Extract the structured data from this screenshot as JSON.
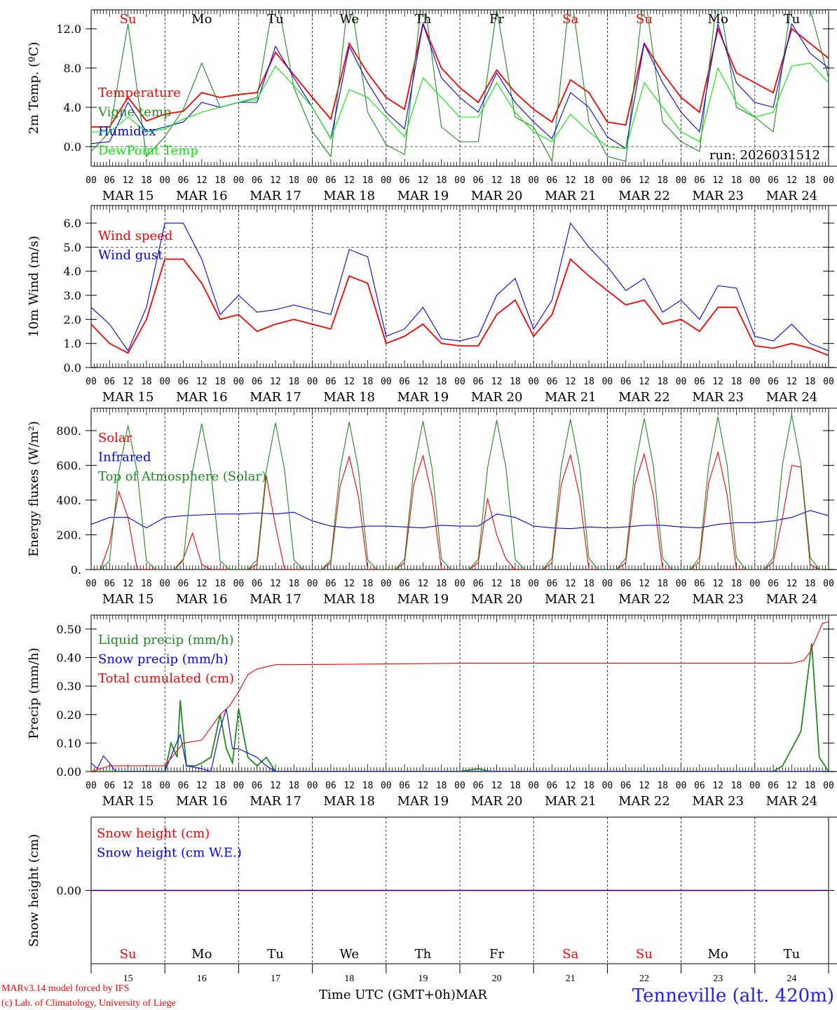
{
  "title": "Tenneville (alt. 420m)",
  "credits": [
    "MARv3.14 model forced by IFS",
    "(c) Lab. of Climatology, University of Liege"
  ],
  "xaxis_label": "Time UTC (GMT+0h)MAR",
  "run_label": "run: 2026031512",
  "hour_labels": [
    "00",
    "06",
    "12",
    "18"
  ],
  "last_hour_label": "00",
  "days": [
    {
      "date": "MAR 15",
      "num": "15",
      "weekday": "Su",
      "weekend": true
    },
    {
      "date": "MAR 16",
      "num": "16",
      "weekday": "Mo",
      "weekend": false
    },
    {
      "date": "MAR 17",
      "num": "17",
      "weekday": "Tu",
      "weekend": false
    },
    {
      "date": "MAR 18",
      "num": "18",
      "weekday": "We",
      "weekend": false
    },
    {
      "date": "MAR 19",
      "num": "19",
      "weekday": "Th",
      "weekend": false
    },
    {
      "date": "MAR 20",
      "num": "20",
      "weekday": "Fr",
      "weekend": false
    },
    {
      "date": "MAR 21",
      "num": "21",
      "weekday": "Sa",
      "weekend": true
    },
    {
      "date": "MAR 22",
      "num": "22",
      "weekday": "Su",
      "weekend": true
    },
    {
      "date": "MAR 23",
      "num": "23",
      "weekday": "Mo",
      "weekend": false
    },
    {
      "date": "MAR 24",
      "num": "24",
      "weekday": "Tu",
      "weekend": false
    }
  ],
  "colors": {
    "weekend": "#ff0000",
    "weekday": "#000000",
    "title": "#2020ff",
    "credits": "#ff0000"
  },
  "chart_data": [
    {
      "type": "line",
      "ylabel": "2m Temp. (ºC)",
      "ylim": [
        -2,
        13.93
      ],
      "yticks": [
        0,
        4,
        8,
        12
      ],
      "yticklabels": [
        "0.0",
        "4.0",
        "8.0",
        "12.0"
      ],
      "ref_lines": [
        0
      ],
      "x_unit": "hours since MAR 15 00 UTC",
      "show_weekdays": true,
      "series": [
        {
          "name": "Temperature",
          "color": "#ff0000",
          "step_h": 6,
          "values": [
            2.0,
            2.0,
            5.0,
            2.6,
            3.3,
            3.6,
            5.5,
            5.0,
            5.3,
            5.5,
            9.6,
            7.3,
            5.0,
            2.8,
            10.5,
            7.5,
            5.0,
            3.8,
            12.5,
            8.0,
            6.0,
            4.5,
            7.8,
            5.5,
            3.8,
            2.5,
            6.8,
            5.5,
            2.5,
            2.2,
            10.5,
            7.5,
            5.0,
            3.5,
            12.0,
            7.5,
            6.5,
            5.5,
            12.0,
            10.5,
            9.0
          ]
        },
        {
          "name": "Vigne temp",
          "color": "#1e8c1e",
          "step_h": 6,
          "values": [
            -0.5,
            1.5,
            12.5,
            -1.0,
            1.0,
            3.8,
            8.5,
            4.0,
            4.5,
            5.0,
            16,
            6.0,
            1.5,
            -1.0,
            16,
            3.5,
            0.2,
            -0.8,
            16,
            2.0,
            0.5,
            0.5,
            14,
            3.0,
            2.0,
            -1.5,
            16,
            2.5,
            -1.0,
            -1.5,
            16,
            2.5,
            0.5,
            -0.5,
            16,
            4.0,
            3.0,
            1.5,
            15,
            14,
            7.0
          ]
        },
        {
          "name": "Humidex",
          "color": "#0000ff",
          "step_h": 6,
          "values": [
            0.3,
            0.5,
            4.5,
            1.5,
            2.0,
            2.5,
            4.5,
            4.0,
            4.5,
            4.5,
            10.2,
            7.0,
            4.0,
            0.8,
            10.2,
            6.5,
            3.5,
            1.8,
            12.5,
            7.0,
            5.0,
            3.5,
            7.5,
            4.5,
            2.5,
            0.8,
            5.5,
            4.0,
            1.0,
            -0.2,
            10.5,
            6.5,
            3.5,
            1.5,
            12.5,
            6.5,
            4.5,
            4.0,
            12.5,
            9.5,
            8.0
          ]
        },
        {
          "name": "DewPoint Temp",
          "color": "#00ee00",
          "step_h": 6,
          "values": [
            1.5,
            1.5,
            3.0,
            1.5,
            1.8,
            2.8,
            3.5,
            4.0,
            4.5,
            4.8,
            8.2,
            6.2,
            4.0,
            0.8,
            5.8,
            5.0,
            3.0,
            1.0,
            7.0,
            5.0,
            3.0,
            3.0,
            6.5,
            3.5,
            1.5,
            0.5,
            3.3,
            1.5,
            0.0,
            -0.2,
            6.5,
            4.0,
            1.5,
            0.5,
            8.0,
            4.5,
            3.0,
            3.5,
            8.2,
            8.5,
            6.5
          ]
        }
      ]
    },
    {
      "type": "line",
      "ylabel": "10m Wind (m/s)",
      "ylim": [
        0,
        6.73
      ],
      "yticks": [
        0,
        1,
        2,
        3,
        4,
        5,
        6
      ],
      "yticklabels": [
        "0.0",
        "1.0",
        "2.0",
        "3.0",
        "4.0",
        "5.0",
        "6.0"
      ],
      "ref_lines": [
        5
      ],
      "series": [
        {
          "name": "Wind speed",
          "color": "#ff0000",
          "step_h": 6,
          "values": [
            1.8,
            1.0,
            0.6,
            2.0,
            4.5,
            4.5,
            3.5,
            2.0,
            2.2,
            1.5,
            1.8,
            2.0,
            1.8,
            1.6,
            3.8,
            3.5,
            1.0,
            1.3,
            1.8,
            1.0,
            0.9,
            0.9,
            2.2,
            2.8,
            1.3,
            2.2,
            4.5,
            3.8,
            3.2,
            2.6,
            2.8,
            1.8,
            2.0,
            1.5,
            2.5,
            2.5,
            0.9,
            0.8,
            1.0,
            0.8,
            0.5
          ]
        },
        {
          "name": "Wind gust",
          "color": "#0000ff",
          "step_h": 6,
          "values": [
            2.5,
            1.8,
            0.7,
            2.5,
            6.0,
            6.0,
            4.5,
            2.2,
            3.0,
            2.3,
            2.4,
            2.6,
            2.4,
            2.2,
            4.9,
            4.6,
            1.3,
            1.6,
            2.5,
            1.2,
            1.1,
            1.3,
            3.0,
            3.7,
            1.6,
            2.8,
            6.0,
            5.0,
            4.2,
            3.2,
            3.7,
            2.3,
            2.8,
            2.0,
            3.4,
            3.3,
            1.3,
            1.1,
            1.8,
            1.0,
            0.7
          ]
        }
      ]
    },
    {
      "type": "line",
      "ylabel": "Energy fluxes (W/m²)",
      "ylim": [
        0,
        929
      ],
      "yticks": [
        0,
        200,
        400,
        600,
        800
      ],
      "yticklabels": [
        "0.",
        "200.",
        "400.",
        "600.",
        "800."
      ],
      "ref_lines": [],
      "series": [
        {
          "name": "Solar",
          "color": "#ff0000",
          "step_h": 3,
          "values": [
            0,
            0,
            150,
            450,
            300,
            0,
            0,
            0,
            0,
            0,
            60,
            210,
            30,
            0,
            0,
            0,
            0,
            0,
            30,
            540,
            250,
            0,
            0,
            0,
            0,
            0,
            40,
            480,
            650,
            420,
            0,
            0,
            0,
            0,
            40,
            490,
            655,
            420,
            0,
            0,
            0,
            0,
            40,
            410,
            200,
            60,
            0,
            0,
            0,
            0,
            40,
            490,
            660,
            420,
            0,
            0,
            0,
            0,
            40,
            495,
            665,
            425,
            0,
            0,
            0,
            0,
            45,
            500,
            675,
            430,
            0,
            0,
            0,
            0,
            45,
            300,
            600,
            590,
            30,
            0,
            0
          ]
        },
        {
          "name": "Infrared",
          "color": "#0000ff",
          "step_h": 6,
          "values": [
            260,
            300,
            300,
            240,
            300,
            310,
            315,
            320,
            320,
            325,
            320,
            330,
            280,
            250,
            240,
            250,
            250,
            245,
            240,
            255,
            250,
            250,
            320,
            300,
            250,
            240,
            235,
            245,
            240,
            245,
            255,
            255,
            245,
            240,
            260,
            270,
            270,
            280,
            300,
            340,
            310
          ]
        },
        {
          "name": "Top of Atmosphere (Solar)",
          "color": "#1e8c1e",
          "step_h": 3,
          "values": [
            0,
            0,
            50,
            560,
            830,
            560,
            50,
            0,
            0,
            0,
            50,
            565,
            840,
            565,
            50,
            0,
            0,
            0,
            55,
            570,
            845,
            570,
            55,
            0,
            0,
            0,
            55,
            575,
            850,
            575,
            55,
            0,
            0,
            0,
            60,
            580,
            855,
            580,
            60,
            0,
            0,
            0,
            60,
            585,
            860,
            585,
            60,
            0,
            0,
            0,
            65,
            590,
            865,
            590,
            65,
            0,
            0,
            0,
            65,
            595,
            870,
            595,
            65,
            0,
            0,
            0,
            70,
            600,
            880,
            600,
            70,
            0,
            0,
            0,
            70,
            605,
            890,
            605,
            70,
            0,
            0
          ]
        }
      ]
    },
    {
      "type": "line",
      "ylabel": "Precip (mm/h)",
      "ylim": [
        0,
        0.549
      ],
      "yticks": [
        0,
        0.1,
        0.2,
        0.3,
        0.4,
        0.5
      ],
      "yticklabels": [
        "0.00",
        "0.10",
        "0.20",
        "0.30",
        "0.40",
        "0.50"
      ],
      "ref_lines": [],
      "series": [
        {
          "name": "Liquid precip (mm/h)",
          "color": "#1e8c1e",
          "hours": [
            0,
            24,
            26,
            28,
            29,
            31,
            34,
            36,
            39,
            42,
            44,
            46,
            48,
            51,
            54,
            57,
            60,
            66,
            120,
            126,
            130,
            222,
            225,
            228,
            231,
            234.5,
            237,
            240
          ],
          "values": [
            0,
            0,
            0.1,
            0.05,
            0.25,
            0.02,
            0.02,
            0.03,
            0.05,
            0.2,
            0.08,
            0.03,
            0.22,
            0.05,
            0.02,
            0.05,
            0,
            0,
            0,
            0.01,
            0,
            0,
            0.02,
            0.08,
            0.14,
            0.45,
            0.05,
            0
          ]
        },
        {
          "name": "Snow precip (mm/h)",
          "color": "#0000ff",
          "hours": [
            0,
            2,
            4,
            6,
            8,
            24,
            27,
            29,
            31,
            36,
            39,
            42,
            44,
            46,
            48,
            54,
            57,
            60,
            240
          ],
          "values": [
            0.03,
            0.01,
            0.055,
            0.03,
            0,
            0,
            0.08,
            0.13,
            0.02,
            0.01,
            0,
            0.15,
            0.22,
            0.08,
            0.08,
            0.05,
            0.02,
            0,
            0
          ]
        },
        {
          "name": "Total cumulated (cm)",
          "color": "#ff0000",
          "hours": [
            0,
            6,
            24,
            27,
            30,
            36,
            42,
            45,
            48,
            51,
            54,
            60,
            66,
            120,
            228,
            232,
            234,
            236,
            238,
            240
          ],
          "values": [
            0,
            0.02,
            0.02,
            0.06,
            0.1,
            0.11,
            0.2,
            0.23,
            0.28,
            0.34,
            0.36,
            0.375,
            0.375,
            0.38,
            0.38,
            0.39,
            0.42,
            0.47,
            0.52,
            0.525
          ]
        }
      ]
    },
    {
      "type": "line",
      "ylabel": "Snow height (cm)",
      "ylim": [
        -1,
        1
      ],
      "yticks": [
        0
      ],
      "yticklabels": [
        "0.00"
      ],
      "ref_lines": [],
      "series": [
        {
          "name": "Snow height (cm)",
          "color": "#ff0000",
          "step_h": 240,
          "values": [
            0,
            0
          ]
        },
        {
          "name": "Snow height (cm W.E.)",
          "color": "#0000ff",
          "step_h": 240,
          "values": [
            0,
            0
          ]
        }
      ]
    }
  ]
}
